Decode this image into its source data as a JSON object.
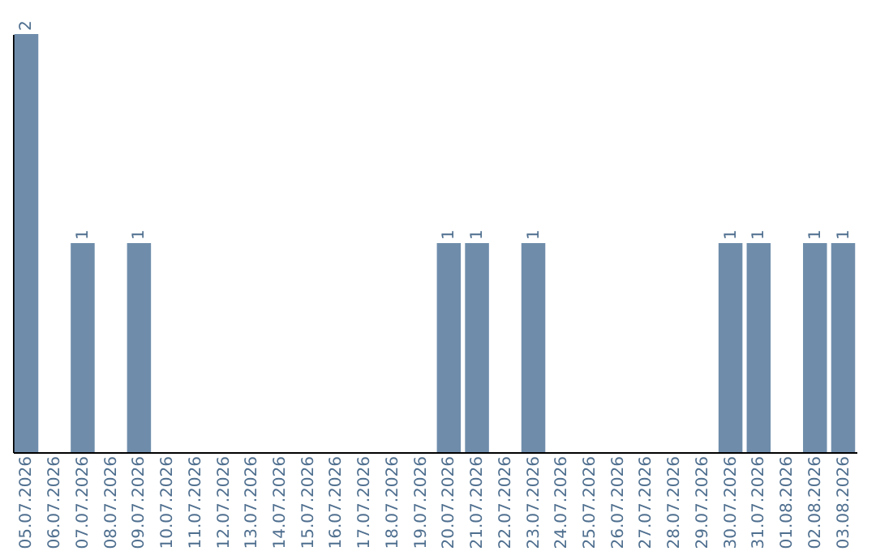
{
  "chart_data": {
    "type": "bar",
    "color": "#6f8dab",
    "categories": [
      "05.07.2026",
      "06.07.2026",
      "07.07.2026",
      "08.07.2026",
      "09.07.2026",
      "10.07.2026",
      "11.07.2026",
      "12.07.2026",
      "13.07.2026",
      "14.07.2026",
      "15.07.2026",
      "16.07.2026",
      "17.07.2026",
      "18.07.2026",
      "19.07.2026",
      "20.07.2026",
      "21.07.2026",
      "22.07.2026",
      "23.07.2026",
      "24.07.2026",
      "25.07.2026",
      "26.07.2026",
      "27.07.2026",
      "28.07.2026",
      "29.07.2026",
      "30.07.2026",
      "31.07.2026",
      "01.08.2026",
      "02.08.2026",
      "03.08.2026"
    ],
    "values": [
      2,
      0,
      1,
      0,
      1,
      0,
      0,
      0,
      0,
      0,
      0,
      0,
      0,
      0,
      0,
      1,
      1,
      0,
      1,
      0,
      0,
      0,
      0,
      0,
      0,
      1,
      1,
      0,
      1,
      1
    ],
    "value_labels": [
      "2",
      null,
      "1",
      null,
      "1",
      null,
      null,
      null,
      null,
      null,
      null,
      null,
      null,
      null,
      null,
      "1",
      "1",
      null,
      "1",
      null,
      null,
      null,
      null,
      null,
      null,
      "1",
      "1",
      null,
      "1",
      "1"
    ]
  }
}
